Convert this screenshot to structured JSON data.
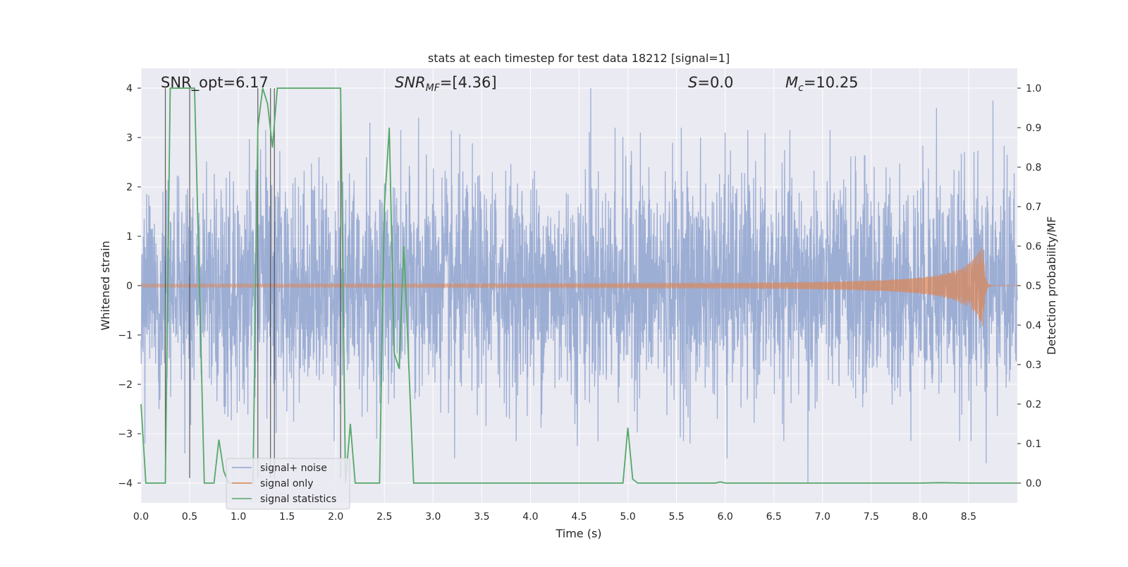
{
  "chart_data": {
    "type": "line",
    "title": "stats at each timestep for test data 18212 [signal=1]",
    "xlabel": "Time (s)",
    "ylabel": "Whitened strain",
    "y2label": "Detection probability/MF",
    "xlim": [
      0.0,
      9.0
    ],
    "ylim": [
      -4.4,
      4.4
    ],
    "y2lim": [
      -0.05,
      1.05
    ],
    "x_ticks": [
      "0.0",
      "0.5",
      "1.0",
      "1.5",
      "2.0",
      "2.5",
      "3.0",
      "3.5",
      "4.0",
      "4.5",
      "5.0",
      "5.5",
      "6.0",
      "6.5",
      "7.0",
      "7.5",
      "8.0",
      "8.5"
    ],
    "y_ticks": [
      "4",
      "3",
      "2",
      "1",
      "0",
      "−1",
      "−2",
      "−3",
      "−4"
    ],
    "y2_ticks": [
      "1.0",
      "0.9",
      "0.8",
      "0.7",
      "0.6",
      "0.5",
      "0.4",
      "0.3",
      "0.2",
      "0.1",
      "0.0"
    ],
    "annotations": {
      "snr_opt": "SNR_opt=6.17",
      "snr_mf_base": "SNR",
      "snr_mf_sub": "MF",
      "snr_mf_value": "=[4.36]",
      "s_label": "S",
      "s_value": "=0.0",
      "mc_base": "M",
      "mc_sub": "c",
      "mc_value": "=10.25"
    },
    "legend": {
      "position": "lower-left",
      "entries": [
        {
          "label": "signal+ noise",
          "color": "#8fa3cf"
        },
        {
          "label": "signal only",
          "color": "#dd8452"
        },
        {
          "label": "signal statistics",
          "color": "#55a868"
        }
      ]
    },
    "series": [
      {
        "name": "signal+ noise",
        "axis": "left",
        "description": "whitened strain noise, approx. gaussian, std ~1.1, range about -4 to 4",
        "std": 1.1,
        "peaks": [
          {
            "x": 4.62,
            "y": 4.0
          },
          {
            "x": 8.75,
            "y": 3.75
          },
          {
            "x": 8.17,
            "y": 3.6
          },
          {
            "x": 2.85,
            "y": 3.4
          },
          {
            "x": 2.35,
            "y": 3.3
          },
          {
            "x": 4.87,
            "y": 3.2
          },
          {
            "x": 5.13,
            "y": 3.1
          },
          {
            "x": 5.55,
            "y": 3.2
          },
          {
            "x": 6.0,
            "y": 3.1
          },
          {
            "x": 6.85,
            "y": -4.0
          },
          {
            "x": 8.68,
            "y": -3.6
          },
          {
            "x": 3.22,
            "y": -3.5
          },
          {
            "x": 5.64,
            "y": -3.2
          },
          {
            "x": 4.48,
            "y": -3.25
          },
          {
            "x": 0.45,
            "y": -3.4
          },
          {
            "x": 2.42,
            "y": -3.1
          },
          {
            "x": 6.02,
            "y": -3.5
          },
          {
            "x": 0.04,
            "y": -3.2
          }
        ]
      },
      {
        "name": "signal only",
        "axis": "left",
        "description": "chirp signal, amplitude growing to ~0.85 at merger near t=8.65 s",
        "merger_time": 8.65,
        "peak_amplitude": 0.85
      },
      {
        "name": "signal statistics",
        "axis": "right",
        "x": [
          0.0,
          0.05,
          0.1,
          0.15,
          0.2,
          0.25,
          0.3,
          0.35,
          0.4,
          0.45,
          0.5,
          0.55,
          0.6,
          0.65,
          0.7,
          0.75,
          0.8,
          0.85,
          0.9,
          0.95,
          1.0,
          1.05,
          1.1,
          1.15,
          1.2,
          1.25,
          1.3,
          1.35,
          1.4,
          1.45,
          1.5,
          1.55,
          1.6,
          1.65,
          1.7,
          1.75,
          1.8,
          1.85,
          1.9,
          1.95,
          2.0,
          2.05,
          2.1,
          2.15,
          2.2,
          2.25,
          2.3,
          2.35,
          2.4,
          2.45,
          2.5,
          2.55,
          2.6,
          2.65,
          2.7,
          2.75,
          2.8,
          2.85,
          2.9,
          3.0,
          3.5,
          4.0,
          4.5,
          4.95,
          5.0,
          5.05,
          5.1,
          5.5,
          5.9,
          5.95,
          6.0,
          6.5,
          7.0,
          7.5,
          8.0,
          8.2,
          8.5,
          9.0
        ],
        "y": [
          0.2,
          0.0,
          0.0,
          0.0,
          0.0,
          0.0,
          1.0,
          1.0,
          1.0,
          1.0,
          1.0,
          1.0,
          0.5,
          0.0,
          0.0,
          0.0,
          0.11,
          0.03,
          0.0,
          0.0,
          0.0,
          0.0,
          0.0,
          0.0,
          0.9,
          1.0,
          0.96,
          0.85,
          1.0,
          1.0,
          1.0,
          1.0,
          1.0,
          1.0,
          1.0,
          1.0,
          1.0,
          1.0,
          1.0,
          1.0,
          1.0,
          1.0,
          0.0,
          0.15,
          0.0,
          0.0,
          0.0,
          0.0,
          0.0,
          0.0,
          0.7,
          0.9,
          0.33,
          0.29,
          0.6,
          0.3,
          0.0,
          0.0,
          0.0,
          0.0,
          0.0,
          0.0,
          0.0,
          0.0,
          0.14,
          0.01,
          0.0,
          0.0,
          0.0,
          0.003,
          0.0,
          0.0,
          0.0,
          0.0,
          0.0,
          0.001,
          0.0,
          0.0
        ]
      },
      {
        "name": "detection markers",
        "axis": "left",
        "x": [
          0.25,
          0.5,
          1.2,
          1.33,
          1.37,
          2.05
        ],
        "y_top": 4.0,
        "y_bottom": -3.9
      }
    ]
  }
}
